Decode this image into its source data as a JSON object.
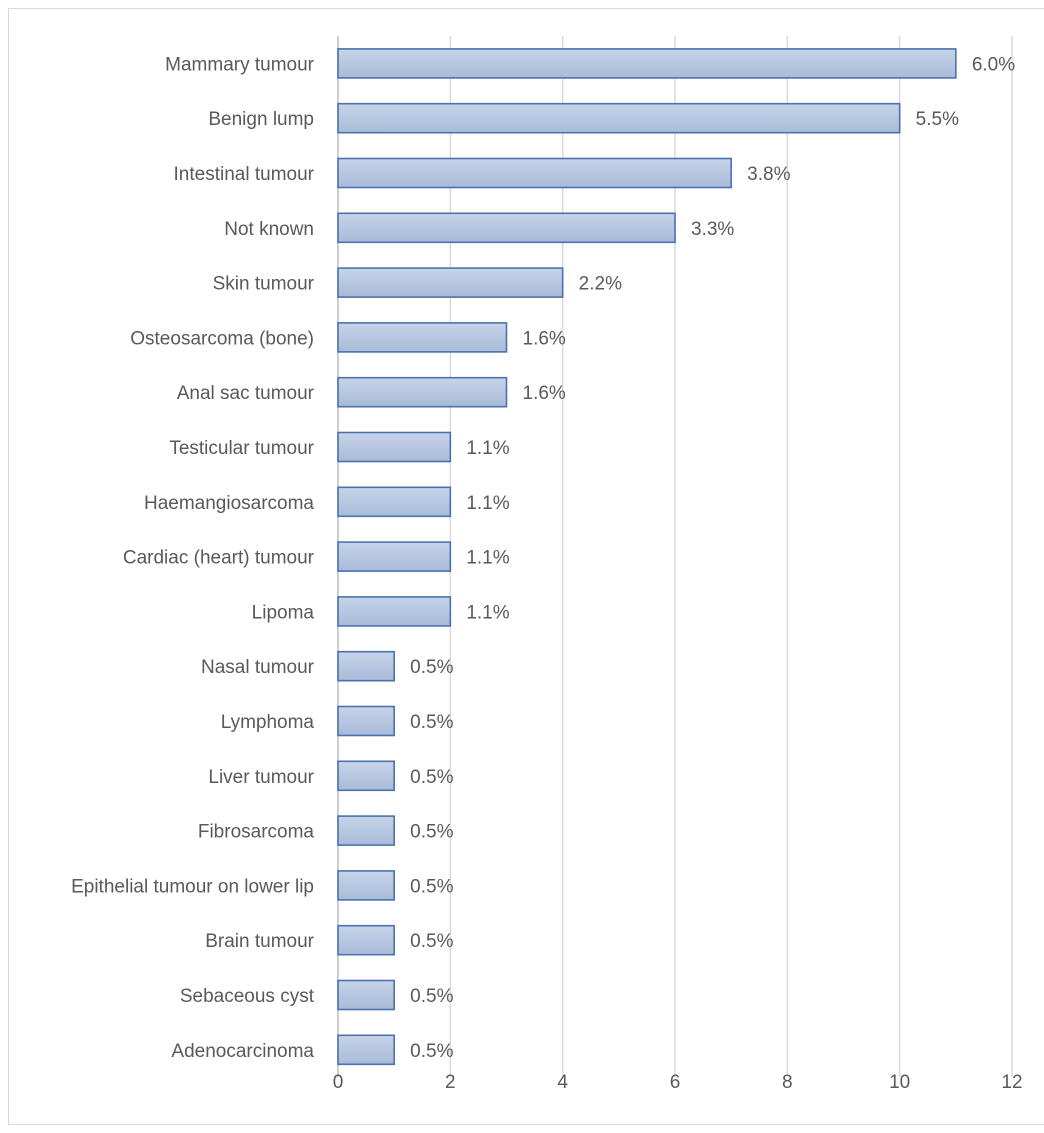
{
  "chart_data": {
    "type": "bar",
    "orientation": "horizontal",
    "title": "",
    "xlabel": "",
    "ylabel": "",
    "categories": [
      "Mammary tumour",
      "Benign lump",
      "Intestinal tumour",
      "Not known",
      "Skin tumour",
      "Osteosarcoma (bone)",
      "Anal sac tumour",
      "Testicular tumour",
      "Haemangiosarcoma",
      "Cardiac (heart) tumour",
      "Lipoma",
      "Nasal tumour",
      "Lymphoma",
      "Liver tumour",
      "Fibrosarcoma",
      "Epithelial tumour on lower lip",
      "Brain tumour",
      "Sebaceous cyst",
      "Adenocarcinoma"
    ],
    "values": [
      11,
      10,
      7,
      6,
      4,
      3,
      3,
      2,
      2,
      2,
      2,
      1,
      1,
      1,
      1,
      1,
      1,
      1,
      1
    ],
    "data_labels": [
      "6.0%",
      "5.5%",
      "3.8%",
      "3.3%",
      "2.2%",
      "1.6%",
      "1.6%",
      "1.1%",
      "1.1%",
      "1.1%",
      "1.1%",
      "0.5%",
      "0.5%",
      "0.5%",
      "0.5%",
      "0.5%",
      "0.5%",
      "0.5%",
      "0.5%"
    ],
    "xlim": [
      0,
      12
    ],
    "xticks": [
      "0",
      "2",
      "4",
      "6",
      "8",
      "10",
      "12"
    ],
    "grid": "vertical",
    "legend": "none",
    "bar_color": "#a8bbd9",
    "bar_color_light": "#c7d4e8",
    "bar_border_color": "#4a72b0"
  }
}
